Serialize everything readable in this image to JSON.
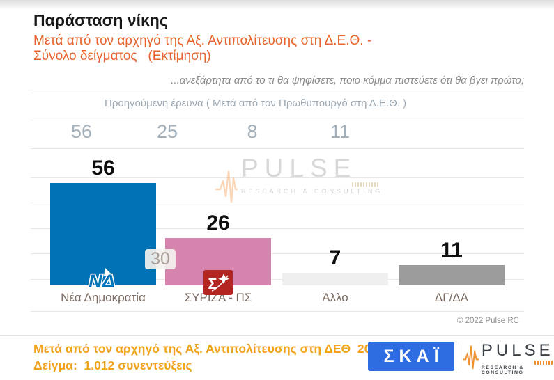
{
  "header": {
    "title": "Παράσταση νίκης",
    "subtitle_line1": "Μετά από τον αρχηγό της Αξ. Αντιπολίτευσης στη Δ.Ε.Θ. -",
    "subtitle_line2": "Σύνολο δείγματος   (Εκτίμηση)"
  },
  "question": "...ανεξάρτητα από το τι θα ψηφίσετε, ποιο κόμμα πιστεύετε ότι θα βγει πρώτο;",
  "previous_survey": {
    "label": "Προηγούμενη έρευνα ( Μετά από τον Πρωθυπουργό στη Δ.Ε.Θ. )",
    "values": [
      56,
      25,
      8,
      11
    ]
  },
  "chart_data": {
    "type": "bar",
    "title": "Παράσταση νίκης",
    "categories": [
      "Νέα Δημοκρατία",
      "ΣΥΡΙΖΑ - ΠΣ",
      "Άλλο",
      "ΔΓ/ΔΑ"
    ],
    "values": [
      56,
      26,
      7,
      11
    ],
    "previous_values": [
      56,
      25,
      8,
      11
    ],
    "difference_label": "30",
    "bar_colors": [
      "#0072b5",
      "#d584ad",
      "#efefef",
      "#9b9b9b"
    ],
    "xlabel": "",
    "ylabel": "",
    "ylim": [
      0,
      60
    ],
    "grid": true,
    "legend_position": "none"
  },
  "watermark": {
    "brand": "PULSE",
    "tagline": "RESEARCH & CONSULTING"
  },
  "copyright": "© 2022 Pulse RC",
  "footer": {
    "line1": "Μετά από τον αρχηγό της Αξ. Αντιπολίτευσης στη ΔΕΘ  2022  /",
    "line2": "Δείγμα:  1.012 συνεντεύξεις"
  },
  "logos": {
    "skai": "ΣΚΑΪ",
    "pulse_brand": "PULSE",
    "pulse_tagline": "RESEARCH & CONSULTING",
    "nd": "ΝΔ",
    "syriza": "Σ"
  },
  "colors": {
    "subtitle_orange": "#e8632b",
    "footer_orange": "#f2a31c",
    "skai_blue": "#2e6ce2",
    "pulse_orange": "#f0912e",
    "nd_blue": "#0072b5",
    "syriza_red": "#b22521",
    "grid_gray": "#e9e7e4"
  }
}
